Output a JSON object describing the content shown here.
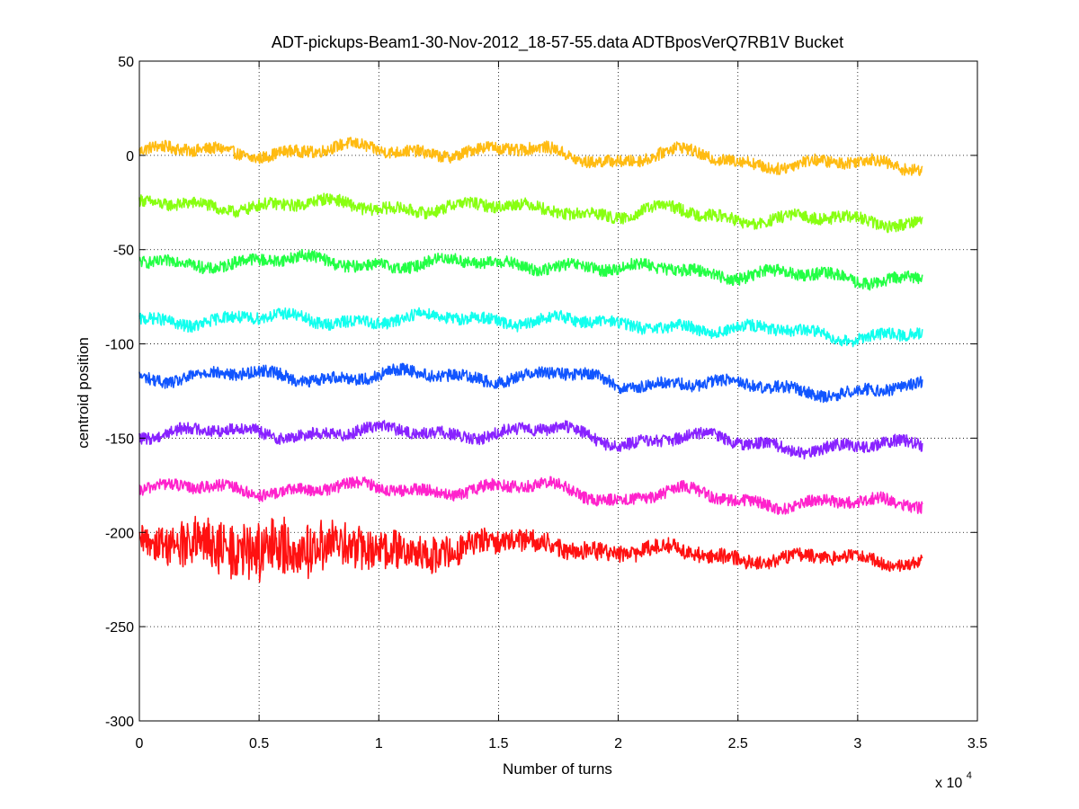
{
  "chart_data": {
    "type": "line",
    "title": "ADT-pickups-Beam1-30-Nov-2012_18-57-55.data   ADTBposVerQ7RB1V Bucket",
    "xlabel": "Number of turns",
    "ylabel": "centroid position",
    "x_multiplier_base": "x 10",
    "x_multiplier_exponent": "4",
    "xlim": [
      0,
      3.5
    ],
    "ylim": [
      -300,
      50
    ],
    "x_ticks": [
      "0",
      "0.5",
      "1",
      "1.5",
      "2",
      "2.5",
      "3",
      "3.5"
    ],
    "y_ticks": [
      "50",
      "0",
      "-50",
      "-100",
      "-150",
      "-200",
      "-250",
      "-300"
    ],
    "grid": true,
    "x_end": 3.27,
    "series": [
      {
        "color": "#ffbb11",
        "baseline": 2,
        "noise": 3.2,
        "x": [
          0,
          0.5,
          1.0,
          1.5,
          1.75,
          2.0,
          2.25,
          2.5,
          3.0,
          3.27
        ],
        "values": [
          2,
          2,
          3,
          2,
          2,
          -3,
          1,
          -3,
          -5,
          -5
        ]
      },
      {
        "color": "#88ff11",
        "baseline": -27,
        "noise": 3.2,
        "x": [
          0,
          0.5,
          1.0,
          1.5,
          1.75,
          2.0,
          2.25,
          2.5,
          3.0,
          3.27
        ],
        "values": [
          -27,
          -26,
          -27,
          -28,
          -27,
          -33,
          -29,
          -33,
          -35,
          -34
        ]
      },
      {
        "color": "#22ff44",
        "baseline": -57,
        "noise": 3.2,
        "x": [
          0,
          0.5,
          1.0,
          1.5,
          1.75,
          2.0,
          2.25,
          2.5,
          3.0,
          3.27
        ],
        "values": [
          -57,
          -56,
          -57,
          -58,
          -57,
          -62,
          -59,
          -63,
          -65,
          -64
        ]
      },
      {
        "color": "#11ffee",
        "baseline": -87,
        "noise": 3.2,
        "x": [
          0,
          0.5,
          1.0,
          1.5,
          1.75,
          2.0,
          2.25,
          2.5,
          3.0,
          3.27
        ],
        "values": [
          -87,
          -87,
          -87,
          -87,
          -86,
          -92,
          -89,
          -93,
          -95,
          -95
        ]
      },
      {
        "color": "#1155ff",
        "baseline": -117,
        "noise": 3.2,
        "x": [
          0,
          0.5,
          1.0,
          1.5,
          1.75,
          2.0,
          2.25,
          2.5,
          3.0,
          3.27
        ],
        "values": [
          -117,
          -117,
          -117,
          -117,
          -116,
          -122,
          -119,
          -123,
          -125,
          -124
        ]
      },
      {
        "color": "#8822ff",
        "baseline": -147,
        "noise": 3.2,
        "x": [
          0,
          0.5,
          1.0,
          1.5,
          1.75,
          2.0,
          2.25,
          2.5,
          3.0,
          3.27
        ],
        "values": [
          -147,
          -147,
          -147,
          -147,
          -146,
          -152,
          -149,
          -153,
          -155,
          -154
        ]
      },
      {
        "color": "#ff22cc",
        "baseline": -177,
        "noise": 3.2,
        "x": [
          0,
          0.5,
          1.0,
          1.5,
          1.75,
          2.0,
          2.25,
          2.5,
          3.0,
          3.27
        ],
        "values": [
          -177,
          -177,
          -177,
          -177,
          -176,
          -182,
          -179,
          -183,
          -185,
          -184
        ]
      },
      {
        "color": "#ff1111",
        "baseline": -210,
        "noise": 6,
        "x": [
          0,
          0.2,
          0.5,
          0.8,
          1.0,
          1.3,
          1.5,
          1.75,
          2.0,
          2.25,
          2.5,
          3.0,
          3.27
        ],
        "values": [
          -208,
          -207,
          -208,
          -210,
          -208,
          -210,
          -205,
          -206,
          -211,
          -210,
          -213,
          -215,
          -215
        ],
        "amplitude": [
          10,
          14,
          18,
          14,
          12,
          10,
          7,
          6,
          5,
          5,
          4,
          4,
          4
        ]
      }
    ]
  }
}
